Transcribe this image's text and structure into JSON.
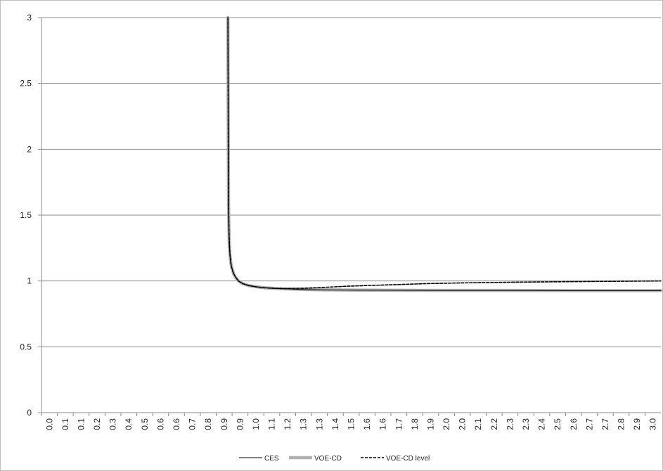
{
  "chart_data": {
    "type": "line",
    "title": "",
    "xlabel": "",
    "ylabel": "",
    "xlim": [
      0.0,
      3.05
    ],
    "ylim": [
      0,
      3
    ],
    "grid": "horizontal",
    "legend_position": "bottom",
    "x_ticks": [
      "0.0",
      "0.1",
      "0.1",
      "0.2",
      "0.3",
      "0.4",
      "0.5",
      "0.6",
      "0.6",
      "0.7",
      "0.8",
      "0.9",
      "0.9",
      "1.0",
      "1.1",
      "1.2",
      "1.3",
      "1.3",
      "1.4",
      "1.5",
      "1.6",
      "1.6",
      "1.7",
      "1.8",
      "1.9",
      "2.0",
      "2.0",
      "2.1",
      "2.2",
      "2.3",
      "2.3",
      "2.4",
      "2.5",
      "2.6",
      "2.7",
      "2.7",
      "2.8",
      "2.9",
      "3.0"
    ],
    "y_ticks": [
      "0",
      "0.5",
      "1",
      "1.5",
      "2",
      "2.5",
      "3"
    ],
    "series": [
      {
        "name": "CES",
        "color": "#000000",
        "style": "solid",
        "x": [
          0.918,
          0.919,
          0.92,
          0.921,
          0.923,
          0.925,
          0.928,
          0.932,
          0.937,
          0.945,
          0.955,
          0.97,
          0.99,
          1.02,
          1.06,
          1.1,
          1.15,
          1.2,
          1.3,
          1.4,
          1.6,
          1.8,
          2.0,
          2.3,
          2.6,
          3.05
        ],
        "y": [
          3.0,
          2.5,
          2.0,
          1.6,
          1.4,
          1.28,
          1.2,
          1.14,
          1.1,
          1.06,
          1.03,
          1.0,
          0.98,
          0.965,
          0.955,
          0.948,
          0.943,
          0.94,
          0.935,
          0.932,
          0.93,
          0.929,
          0.928,
          0.928,
          0.927,
          0.927
        ]
      },
      {
        "name": "VOE-CD",
        "color": "#b0b0b0",
        "style": "thick",
        "x": [
          0.918,
          0.919,
          0.92,
          0.921,
          0.923,
          0.925,
          0.928,
          0.932,
          0.937,
          0.945,
          0.955,
          0.97,
          0.99,
          1.02,
          1.06,
          1.1,
          1.15,
          1.2,
          1.3,
          1.4,
          1.6,
          1.8,
          2.0,
          2.3,
          2.6,
          3.05
        ],
        "y": [
          3.0,
          2.5,
          2.0,
          1.6,
          1.4,
          1.28,
          1.2,
          1.14,
          1.1,
          1.06,
          1.03,
          1.0,
          0.98,
          0.965,
          0.955,
          0.948,
          0.943,
          0.94,
          0.935,
          0.932,
          0.93,
          0.929,
          0.928,
          0.928,
          0.927,
          0.927
        ]
      },
      {
        "name": "VOE-CD level",
        "color": "#000000",
        "style": "dashed",
        "x": [
          0.918,
          0.919,
          0.92,
          0.921,
          0.923,
          0.925,
          0.928,
          0.932,
          0.937,
          0.945,
          0.955,
          0.97,
          0.99,
          1.02,
          1.06,
          1.1,
          1.15,
          1.2,
          1.3,
          1.4,
          1.5,
          1.7,
          1.9,
          2.1,
          2.4,
          2.7,
          3.05
        ],
        "y": [
          3.0,
          2.5,
          2.0,
          1.6,
          1.4,
          1.28,
          1.2,
          1.14,
          1.1,
          1.06,
          1.03,
          1.0,
          0.98,
          0.965,
          0.955,
          0.948,
          0.944,
          0.942,
          0.945,
          0.952,
          0.96,
          0.97,
          0.98,
          0.986,
          0.992,
          0.996,
          1.0
        ]
      }
    ]
  }
}
